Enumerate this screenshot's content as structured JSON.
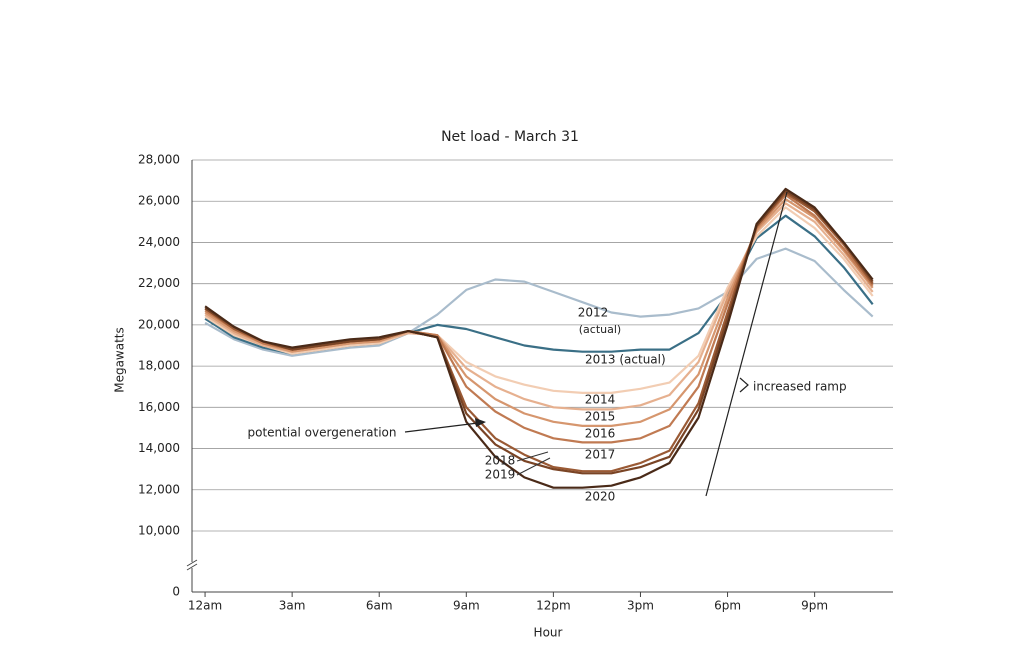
{
  "chart_data": {
    "type": "line",
    "title": "Net load - March 31",
    "xlabel": "Hour",
    "ylabel": "Megawatts",
    "x": [
      0,
      1,
      2,
      3,
      4,
      5,
      6,
      7,
      8,
      9,
      10,
      11,
      12,
      13,
      14,
      15,
      16,
      17,
      18,
      19,
      20,
      21,
      22,
      23
    ],
    "xlim": [
      -0.45,
      23.7
    ],
    "xticks": [
      {
        "value": 0,
        "label": "12am"
      },
      {
        "value": 3,
        "label": "3am"
      },
      {
        "value": 6,
        "label": "6am"
      },
      {
        "value": 9,
        "label": "9am"
      },
      {
        "value": 12,
        "label": "12pm"
      },
      {
        "value": 15,
        "label": "3pm"
      },
      {
        "value": 18,
        "label": "6pm"
      },
      {
        "value": 21,
        "label": "9pm"
      }
    ],
    "ylim": [
      0,
      28000
    ],
    "yticks": [
      0,
      {
        "value": 10000,
        "label": "10,000"
      },
      {
        "value": 12000,
        "label": "12,000"
      },
      {
        "value": 14000,
        "label": "14,000"
      },
      {
        "value": 16000,
        "label": "16,000"
      },
      {
        "value": 18000,
        "label": "18,000"
      },
      {
        "value": 20000,
        "label": "20,000"
      },
      {
        "value": 22000,
        "label": "22,000"
      },
      {
        "value": 24000,
        "label": "24,000"
      },
      {
        "value": 26000,
        "label": "26,000"
      },
      {
        "value": 28000,
        "label": "28,000"
      }
    ],
    "axis_break": true,
    "grid": true,
    "series": [
      {
        "name": "2012",
        "color": "#a9bccc",
        "values": [
          20100,
          19300,
          18800,
          18500,
          18700,
          18900,
          19000,
          19600,
          20500,
          21700,
          22200,
          22100,
          21600,
          21100,
          20600,
          20400,
          20500,
          20800,
          21600,
          23200,
          23700,
          23100,
          21700,
          20400
        ]
      },
      {
        "name": "2013 (actual)",
        "color": "#3a6f86",
        "values": [
          20300,
          19400,
          18900,
          18600,
          18800,
          19000,
          19100,
          19600,
          20000,
          19800,
          19400,
          19000,
          18800,
          18700,
          18700,
          18800,
          18800,
          19600,
          21500,
          24200,
          25300,
          24300,
          22800,
          21000
        ]
      },
      {
        "name": "2014",
        "color": "#f2cdb3",
        "values": [
          20400,
          19500,
          19000,
          18600,
          18800,
          19000,
          19100,
          19600,
          19500,
          18200,
          17500,
          17100,
          16800,
          16700,
          16700,
          16900,
          17200,
          18500,
          21800,
          24300,
          25700,
          24700,
          23200,
          21400
        ]
      },
      {
        "name": "2015",
        "color": "#e6b08f",
        "values": [
          20500,
          19600,
          19000,
          18700,
          18900,
          19100,
          19200,
          19600,
          19500,
          17900,
          17000,
          16400,
          16000,
          15900,
          15900,
          16100,
          16600,
          18200,
          21600,
          24500,
          25900,
          25000,
          23400,
          21600
        ]
      },
      {
        "name": "2016",
        "color": "#d6966e",
        "values": [
          20600,
          19700,
          19100,
          18700,
          18900,
          19100,
          19200,
          19700,
          19500,
          17500,
          16400,
          15700,
          15300,
          15100,
          15100,
          15300,
          15900,
          17600,
          21300,
          24600,
          26100,
          25200,
          23600,
          21800
        ]
      },
      {
        "name": "2017",
        "color": "#c07a52",
        "values": [
          20700,
          19800,
          19100,
          18800,
          19000,
          19200,
          19300,
          19700,
          19500,
          17000,
          15800,
          15000,
          14500,
          14300,
          14300,
          14500,
          15100,
          17000,
          21000,
          24700,
          26300,
          25300,
          23700,
          21900
        ]
      },
      {
        "name": "2018",
        "color": "#9a5a35",
        "values": [
          20800,
          19800,
          19200,
          18800,
          19000,
          19200,
          19300,
          19700,
          19400,
          16000,
          14500,
          13700,
          13100,
          12900,
          12900,
          13300,
          13900,
          16200,
          20600,
          24800,
          26400,
          25500,
          23900,
          22000
        ]
      },
      {
        "name": "2019",
        "color": "#7a4425",
        "values": [
          20800,
          19900,
          19200,
          18800,
          19000,
          19200,
          19300,
          19700,
          19400,
          15700,
          14200,
          13400,
          13000,
          12800,
          12800,
          13100,
          13600,
          15900,
          20300,
          24800,
          26500,
          25600,
          24000,
          22100
        ]
      },
      {
        "name": "2020",
        "color": "#4a2a18",
        "values": [
          20900,
          19900,
          19200,
          18900,
          19100,
          19300,
          19400,
          19700,
          19400,
          15300,
          13600,
          12600,
          12100,
          12100,
          12200,
          12600,
          13300,
          15500,
          20000,
          24900,
          26600,
          25700,
          24000,
          22200
        ]
      }
    ],
    "annotations": [
      {
        "text": "(actual)"
      },
      {
        "text": "potential overgeneration"
      },
      {
        "text": "increased ramp"
      }
    ]
  }
}
